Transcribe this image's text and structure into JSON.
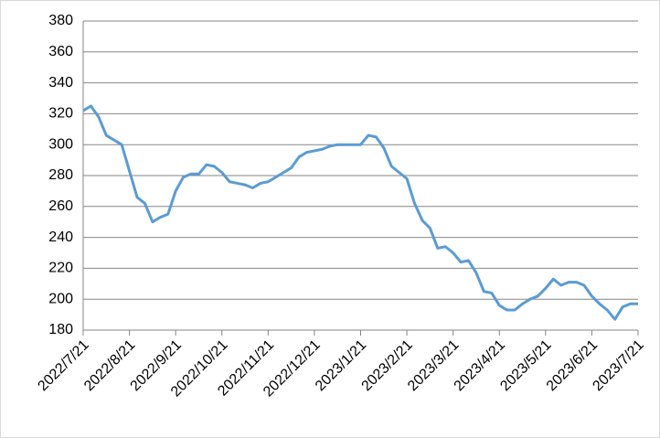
{
  "chart_data": {
    "type": "line",
    "categories": [
      "2022/7/21",
      null,
      null,
      null,
      null,
      null,
      "2022/8/21",
      null,
      null,
      null,
      null,
      null,
      "2022/9/21",
      null,
      null,
      null,
      null,
      null,
      "2022/10/21",
      null,
      null,
      null,
      null,
      null,
      "2022/11/21",
      null,
      null,
      null,
      null,
      null,
      "2022/12/21",
      null,
      null,
      null,
      null,
      null,
      "2023/1/21",
      null,
      null,
      null,
      null,
      null,
      "2023/2/21",
      null,
      null,
      null,
      null,
      null,
      "2023/3/21",
      null,
      null,
      null,
      null,
      null,
      "2023/4/21",
      null,
      null,
      null,
      null,
      null,
      "2023/5/21",
      null,
      null,
      null,
      null,
      null,
      "2023/6/21",
      null,
      null,
      null,
      null,
      null,
      "2023/7/21"
    ],
    "values": [
      322,
      325,
      318,
      306,
      303,
      300,
      283,
      266,
      262,
      250,
      253,
      255,
      270,
      279,
      281,
      281,
      287,
      286,
      282,
      276,
      275,
      274,
      272,
      275,
      276,
      279,
      282,
      285,
      292,
      295,
      296,
      297,
      299,
      300,
      300,
      300,
      300,
      306,
      305,
      298,
      286,
      282,
      278,
      262,
      251,
      246,
      233,
      234,
      230,
      224,
      225,
      217,
      205,
      204,
      196,
      193,
      193,
      197,
      200,
      202,
      207,
      213,
      209,
      211,
      211,
      209,
      202,
      197,
      193,
      187,
      195,
      197,
      197
    ],
    "color": "#5b9bd5",
    "ylim": [
      180,
      380
    ],
    "yticks": [
      180,
      200,
      220,
      240,
      260,
      280,
      300,
      320,
      340,
      360,
      380
    ],
    "grid": true
  }
}
